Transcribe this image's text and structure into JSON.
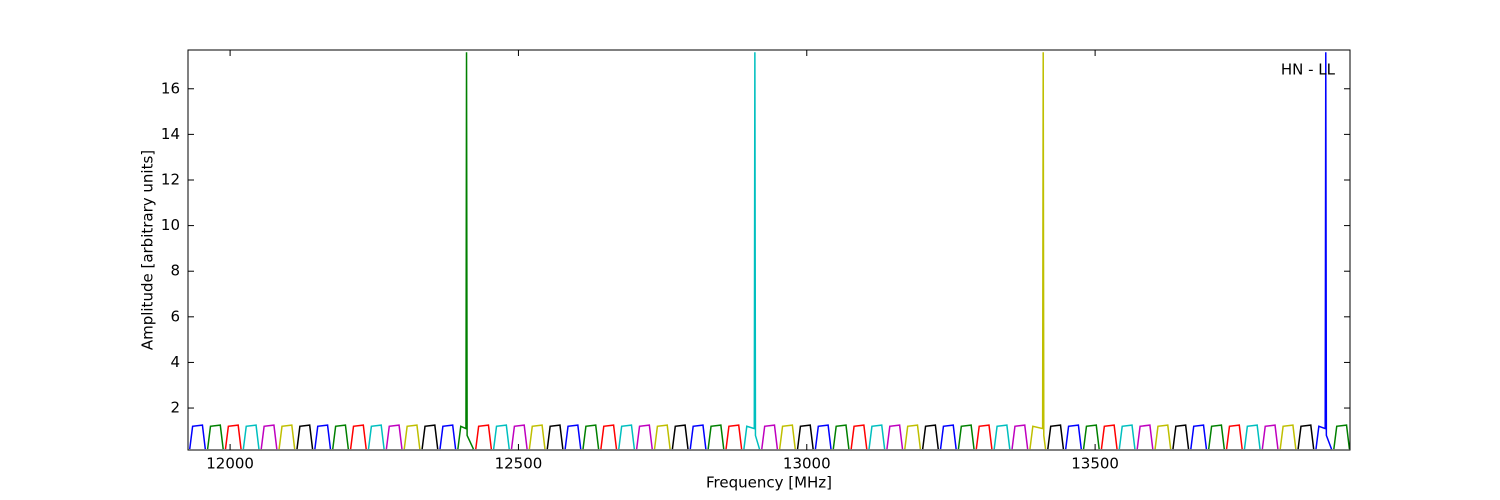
{
  "chart_data": {
    "type": "line",
    "xlabel": "Frequency [MHz]",
    "ylabel": "Amplitude [arbitrary units]",
    "annotation": "HN - LL",
    "xlim": [
      11927,
      13942
    ],
    "ylim": [
      0.16,
      17.7
    ],
    "xticks": [
      12000,
      12500,
      13000,
      13500
    ],
    "yticks": [
      2,
      4,
      6,
      8,
      10,
      12,
      14,
      16
    ],
    "series": [
      {
        "color": "#0000ff",
        "x": [
          11930,
          11935,
          11952,
          11957,
          null,
          12147,
          12152,
          12169,
          12174,
          null,
          12364,
          12369,
          12386,
          12391,
          null,
          12581,
          12586,
          12603,
          12608,
          null,
          12798,
          12803,
          12820,
          12825,
          null,
          13015,
          13020,
          13037,
          13042,
          null,
          13232,
          13237,
          13254,
          13259,
          null,
          13449,
          13454,
          13471,
          13476,
          null,
          13666,
          13671,
          13688,
          13693,
          null,
          13883,
          13888,
          13899,
          13900,
          13901,
          13910
        ],
        "values": [
          0.2,
          1.2,
          1.25,
          0.2,
          null,
          0.2,
          1.2,
          1.25,
          0.2,
          null,
          0.2,
          1.2,
          1.25,
          0.2,
          null,
          0.2,
          1.2,
          1.25,
          0.2,
          null,
          0.2,
          1.2,
          1.25,
          0.2,
          null,
          0.2,
          1.2,
          1.25,
          0.2,
          null,
          0.2,
          1.2,
          1.25,
          0.2,
          null,
          0.2,
          1.2,
          1.25,
          0.2,
          null,
          0.2,
          1.2,
          1.25,
          0.2,
          null,
          0.2,
          1.2,
          1.1,
          17.6,
          0.8,
          0.2
        ]
      },
      {
        "color": "#008000",
        "x": [
          11961,
          11966,
          11983,
          11988,
          null,
          12178,
          12183,
          12200,
          12205,
          null,
          12395,
          12400,
          12409,
          12410,
          12411,
          12422,
          null,
          12612,
          12617,
          12634,
          12639,
          null,
          12829,
          12834,
          12851,
          12856,
          null,
          13046,
          13051,
          13068,
          13073,
          null,
          13263,
          13268,
          13285,
          13290,
          null,
          13480,
          13485,
          13502,
          13507,
          null,
          13697,
          13702,
          13719,
          13724,
          null,
          13914,
          13919,
          13936,
          13941
        ],
        "values": [
          0.2,
          1.2,
          1.25,
          0.2,
          null,
          0.2,
          1.2,
          1.25,
          0.2,
          null,
          0.2,
          1.2,
          1.1,
          17.6,
          0.8,
          0.2,
          null,
          0.2,
          1.2,
          1.25,
          0.2,
          null,
          0.2,
          1.2,
          1.25,
          0.2,
          null,
          0.2,
          1.2,
          1.25,
          0.2,
          null,
          0.2,
          1.2,
          1.25,
          0.2,
          null,
          0.2,
          1.2,
          1.25,
          0.2,
          null,
          0.2,
          1.2,
          1.25,
          0.2,
          null,
          0.2,
          1.2,
          1.25,
          0.2
        ]
      },
      {
        "color": "#ff0000",
        "x": [
          11992,
          11997,
          12014,
          12019,
          null,
          12209,
          12214,
          12231,
          12236,
          null,
          12426,
          12431,
          12448,
          12453,
          null,
          12643,
          12648,
          12665,
          12670,
          null,
          12860,
          12865,
          12882,
          12887,
          null,
          13077,
          13082,
          13099,
          13104,
          null,
          13294,
          13299,
          13316,
          13321,
          null,
          13511,
          13516,
          13533,
          13538,
          null,
          13728,
          13733,
          13750,
          13755
        ],
        "values": [
          0.2,
          1.2,
          1.25,
          0.2,
          null,
          0.2,
          1.2,
          1.25,
          0.2,
          null,
          0.2,
          1.2,
          1.25,
          0.2,
          null,
          0.2,
          1.2,
          1.25,
          0.2,
          null,
          0.2,
          1.2,
          1.25,
          0.2,
          null,
          0.2,
          1.2,
          1.25,
          0.2,
          null,
          0.2,
          1.2,
          1.25,
          0.2,
          null,
          0.2,
          1.2,
          1.25,
          0.2,
          null,
          0.2,
          1.2,
          1.25,
          0.2
        ]
      },
      {
        "color": "#00bfbf",
        "x": [
          12023,
          12028,
          12045,
          12050,
          null,
          12240,
          12245,
          12262,
          12267,
          null,
          12457,
          12462,
          12479,
          12484,
          null,
          12674,
          12679,
          12696,
          12701,
          null,
          12891,
          12896,
          12909,
          12910,
          12911,
          12918,
          null,
          13108,
          13113,
          13130,
          13135,
          null,
          13325,
          13330,
          13347,
          13352,
          null,
          13542,
          13547,
          13564,
          13569,
          null,
          13759,
          13764,
          13781,
          13786
        ],
        "values": [
          0.2,
          1.2,
          1.25,
          0.2,
          null,
          0.2,
          1.2,
          1.25,
          0.2,
          null,
          0.2,
          1.2,
          1.25,
          0.2,
          null,
          0.2,
          1.2,
          1.25,
          0.2,
          null,
          0.2,
          1.2,
          1.1,
          17.6,
          0.8,
          0.2,
          null,
          0.2,
          1.2,
          1.25,
          0.2,
          null,
          0.2,
          1.2,
          1.25,
          0.2,
          null,
          0.2,
          1.2,
          1.25,
          0.2,
          null,
          0.2,
          1.2,
          1.25,
          0.2
        ]
      },
      {
        "color": "#bf00bf",
        "x": [
          12054,
          12059,
          12076,
          12081,
          null,
          12271,
          12276,
          12293,
          12298,
          null,
          12488,
          12493,
          12510,
          12515,
          null,
          12705,
          12710,
          12727,
          12732,
          null,
          12922,
          12927,
          12944,
          12949,
          null,
          13139,
          13144,
          13161,
          13166,
          null,
          13356,
          13361,
          13378,
          13383,
          null,
          13573,
          13578,
          13595,
          13600,
          null,
          13790,
          13795,
          13812,
          13817
        ],
        "values": [
          0.2,
          1.2,
          1.25,
          0.2,
          null,
          0.2,
          1.2,
          1.25,
          0.2,
          null,
          0.2,
          1.2,
          1.25,
          0.2,
          null,
          0.2,
          1.2,
          1.25,
          0.2,
          null,
          0.2,
          1.2,
          1.25,
          0.2,
          null,
          0.2,
          1.2,
          1.25,
          0.2,
          null,
          0.2,
          1.2,
          1.25,
          0.2,
          null,
          0.2,
          1.2,
          1.25,
          0.2,
          null,
          0.2,
          1.2,
          1.25,
          0.2
        ]
      },
      {
        "color": "#bfbf00",
        "x": [
          12085,
          12090,
          12107,
          12112,
          null,
          12302,
          12307,
          12324,
          12329,
          null,
          12519,
          12524,
          12541,
          12546,
          null,
          12736,
          12741,
          12758,
          12763,
          null,
          12953,
          12958,
          12975,
          12980,
          null,
          13170,
          13175,
          13192,
          13197,
          null,
          13387,
          13392,
          13409,
          13410,
          13411,
          13414,
          null,
          13604,
          13609,
          13626,
          13631,
          null,
          13821,
          13826,
          13843,
          13848
        ],
        "values": [
          0.2,
          1.2,
          1.25,
          0.2,
          null,
          0.2,
          1.2,
          1.25,
          0.2,
          null,
          0.2,
          1.2,
          1.25,
          0.2,
          null,
          0.2,
          1.2,
          1.25,
          0.2,
          null,
          0.2,
          1.2,
          1.25,
          0.2,
          null,
          0.2,
          1.2,
          1.25,
          0.2,
          null,
          0.2,
          1.2,
          1.1,
          17.6,
          0.8,
          0.2,
          null,
          0.2,
          1.2,
          1.25,
          0.2,
          null,
          0.2,
          1.2,
          1.25,
          0.2
        ]
      },
      {
        "color": "#000000",
        "x": [
          12116,
          12121,
          12138,
          12143,
          null,
          12333,
          12338,
          12355,
          12360,
          null,
          12550,
          12555,
          12572,
          12577,
          null,
          12767,
          12772,
          12789,
          12794,
          null,
          12984,
          12989,
          13006,
          13011,
          null,
          13201,
          13206,
          13223,
          13228,
          null,
          13418,
          13423,
          13440,
          13445,
          null,
          13635,
          13640,
          13657,
          13662,
          null,
          13852,
          13857,
          13874,
          13879
        ],
        "values": [
          0.2,
          1.2,
          1.25,
          0.2,
          null,
          0.2,
          1.2,
          1.25,
          0.2,
          null,
          0.2,
          1.2,
          1.25,
          0.2,
          null,
          0.2,
          1.2,
          1.25,
          0.2,
          null,
          0.2,
          1.2,
          1.25,
          0.2,
          null,
          0.2,
          1.2,
          1.25,
          0.2,
          null,
          0.2,
          1.2,
          1.25,
          0.2,
          null,
          0.2,
          1.2,
          1.25,
          0.2,
          null,
          0.2,
          1.2,
          1.25,
          0.2
        ]
      }
    ]
  }
}
